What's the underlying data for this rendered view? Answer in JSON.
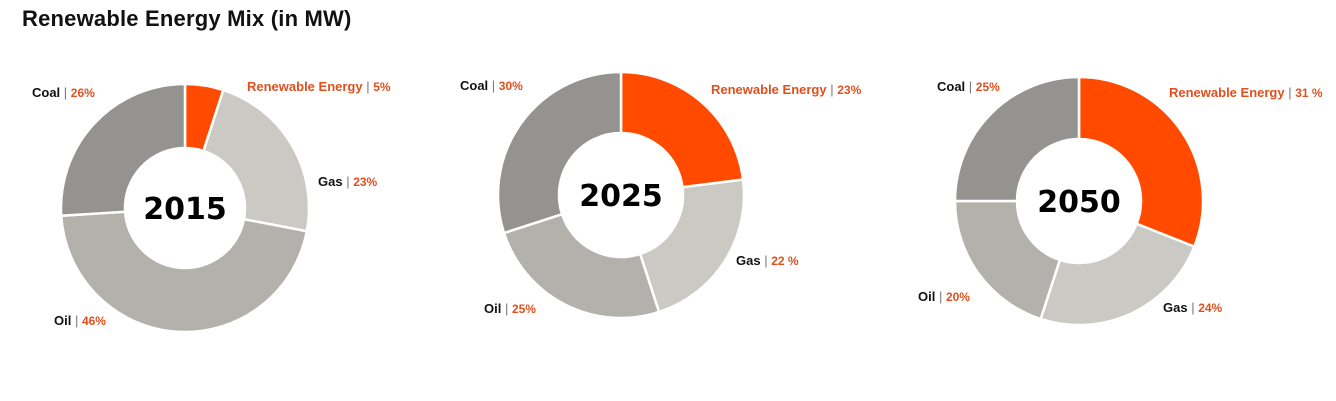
{
  "title": "Renewable Energy Mix (in MW)",
  "colors": {
    "Renewable Energy": "#ff4a00",
    "Gas": "#cbc9c4",
    "Oil": "#b3b1ac",
    "Coal": "#949390",
    "label_name_dark": "#111111",
    "label_value": "#e0501f"
  },
  "chart_data": [
    {
      "type": "pie",
      "donut": true,
      "center_label": "2015",
      "categories": [
        "Renewable Energy",
        "Gas",
        "Oil",
        "Coal"
      ],
      "values": [
        5,
        23,
        46,
        26
      ],
      "value_labels": [
        "5%",
        "23%",
        "46%",
        "26%"
      ]
    },
    {
      "type": "pie",
      "donut": true,
      "center_label": "2025",
      "categories": [
        "Renewable Energy",
        "Gas",
        "Oil",
        "Coal"
      ],
      "values": [
        23,
        22,
        25,
        30
      ],
      "value_labels": [
        "23%",
        "22 %",
        "25%",
        "30%"
      ]
    },
    {
      "type": "pie",
      "donut": true,
      "center_label": "2050",
      "categories": [
        "Renewable Energy",
        "Gas",
        "Oil",
        "Coal"
      ],
      "values": [
        31,
        24,
        20,
        25
      ],
      "value_labels": [
        "31 %",
        "24%",
        "20%",
        "25%"
      ]
    }
  ]
}
